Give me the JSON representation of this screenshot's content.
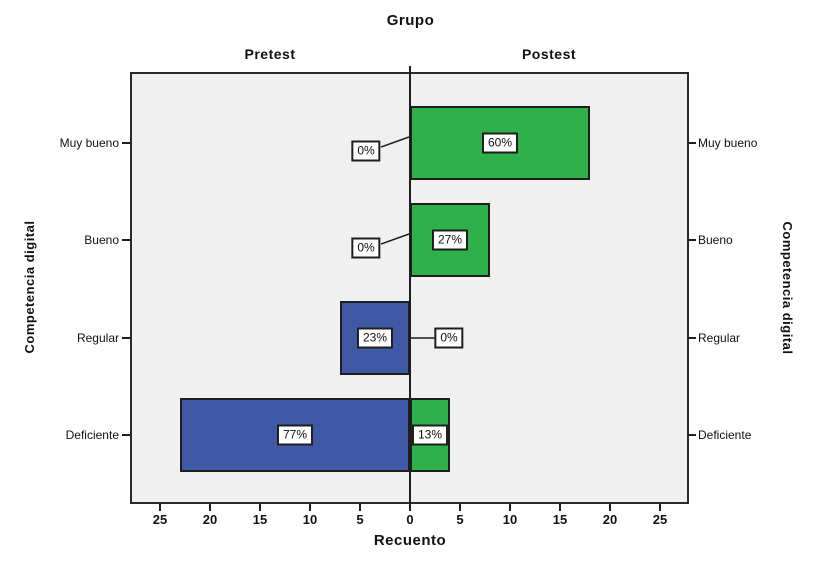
{
  "header": {
    "title": "Grupo"
  },
  "panels": {
    "left_label": "Pretest",
    "right_label": "Postest"
  },
  "axis": {
    "xlabel": "Recuento",
    "ylabel_left": "Competencia digital",
    "ylabel_right": "Competencia digital",
    "tick_labels": [
      "25",
      "20",
      "15",
      "10",
      "5",
      "0",
      "5",
      "10",
      "15",
      "20",
      "25"
    ]
  },
  "categories": [
    "Muy bueno",
    "Bueno",
    "Regular",
    "Deficiente"
  ],
  "colors": {
    "pretest_bar": "#3F59A6",
    "postest_bar": "#2EB14B",
    "plot_background": "#F0F0F0",
    "frame": "#2B2B2B"
  },
  "chart_data": {
    "type": "bar",
    "subtype": "population-pyramid",
    "title": "Grupo",
    "xlabel": "Recuento",
    "ylabel": "Competencia digital",
    "categories": [
      "Muy bueno",
      "Bueno",
      "Regular",
      "Deficiente"
    ],
    "series": [
      {
        "name": "Pretest",
        "side": "left",
        "counts": [
          0,
          0,
          7,
          23
        ],
        "percent_labels": [
          "0%",
          "0%",
          "23%",
          "77%"
        ],
        "color": "#3F59A6"
      },
      {
        "name": "Postest",
        "side": "right",
        "counts": [
          18,
          8,
          0,
          4
        ],
        "percent_labels": [
          "60%",
          "27%",
          "0%",
          "13%"
        ],
        "color": "#2EB14B"
      }
    ],
    "x_axis": {
      "ticks": [
        25,
        20,
        15,
        10,
        5,
        0,
        5,
        10,
        15,
        20,
        25
      ],
      "tick_step": 5,
      "units_per_side": 28
    },
    "grid": false,
    "legend": false
  }
}
